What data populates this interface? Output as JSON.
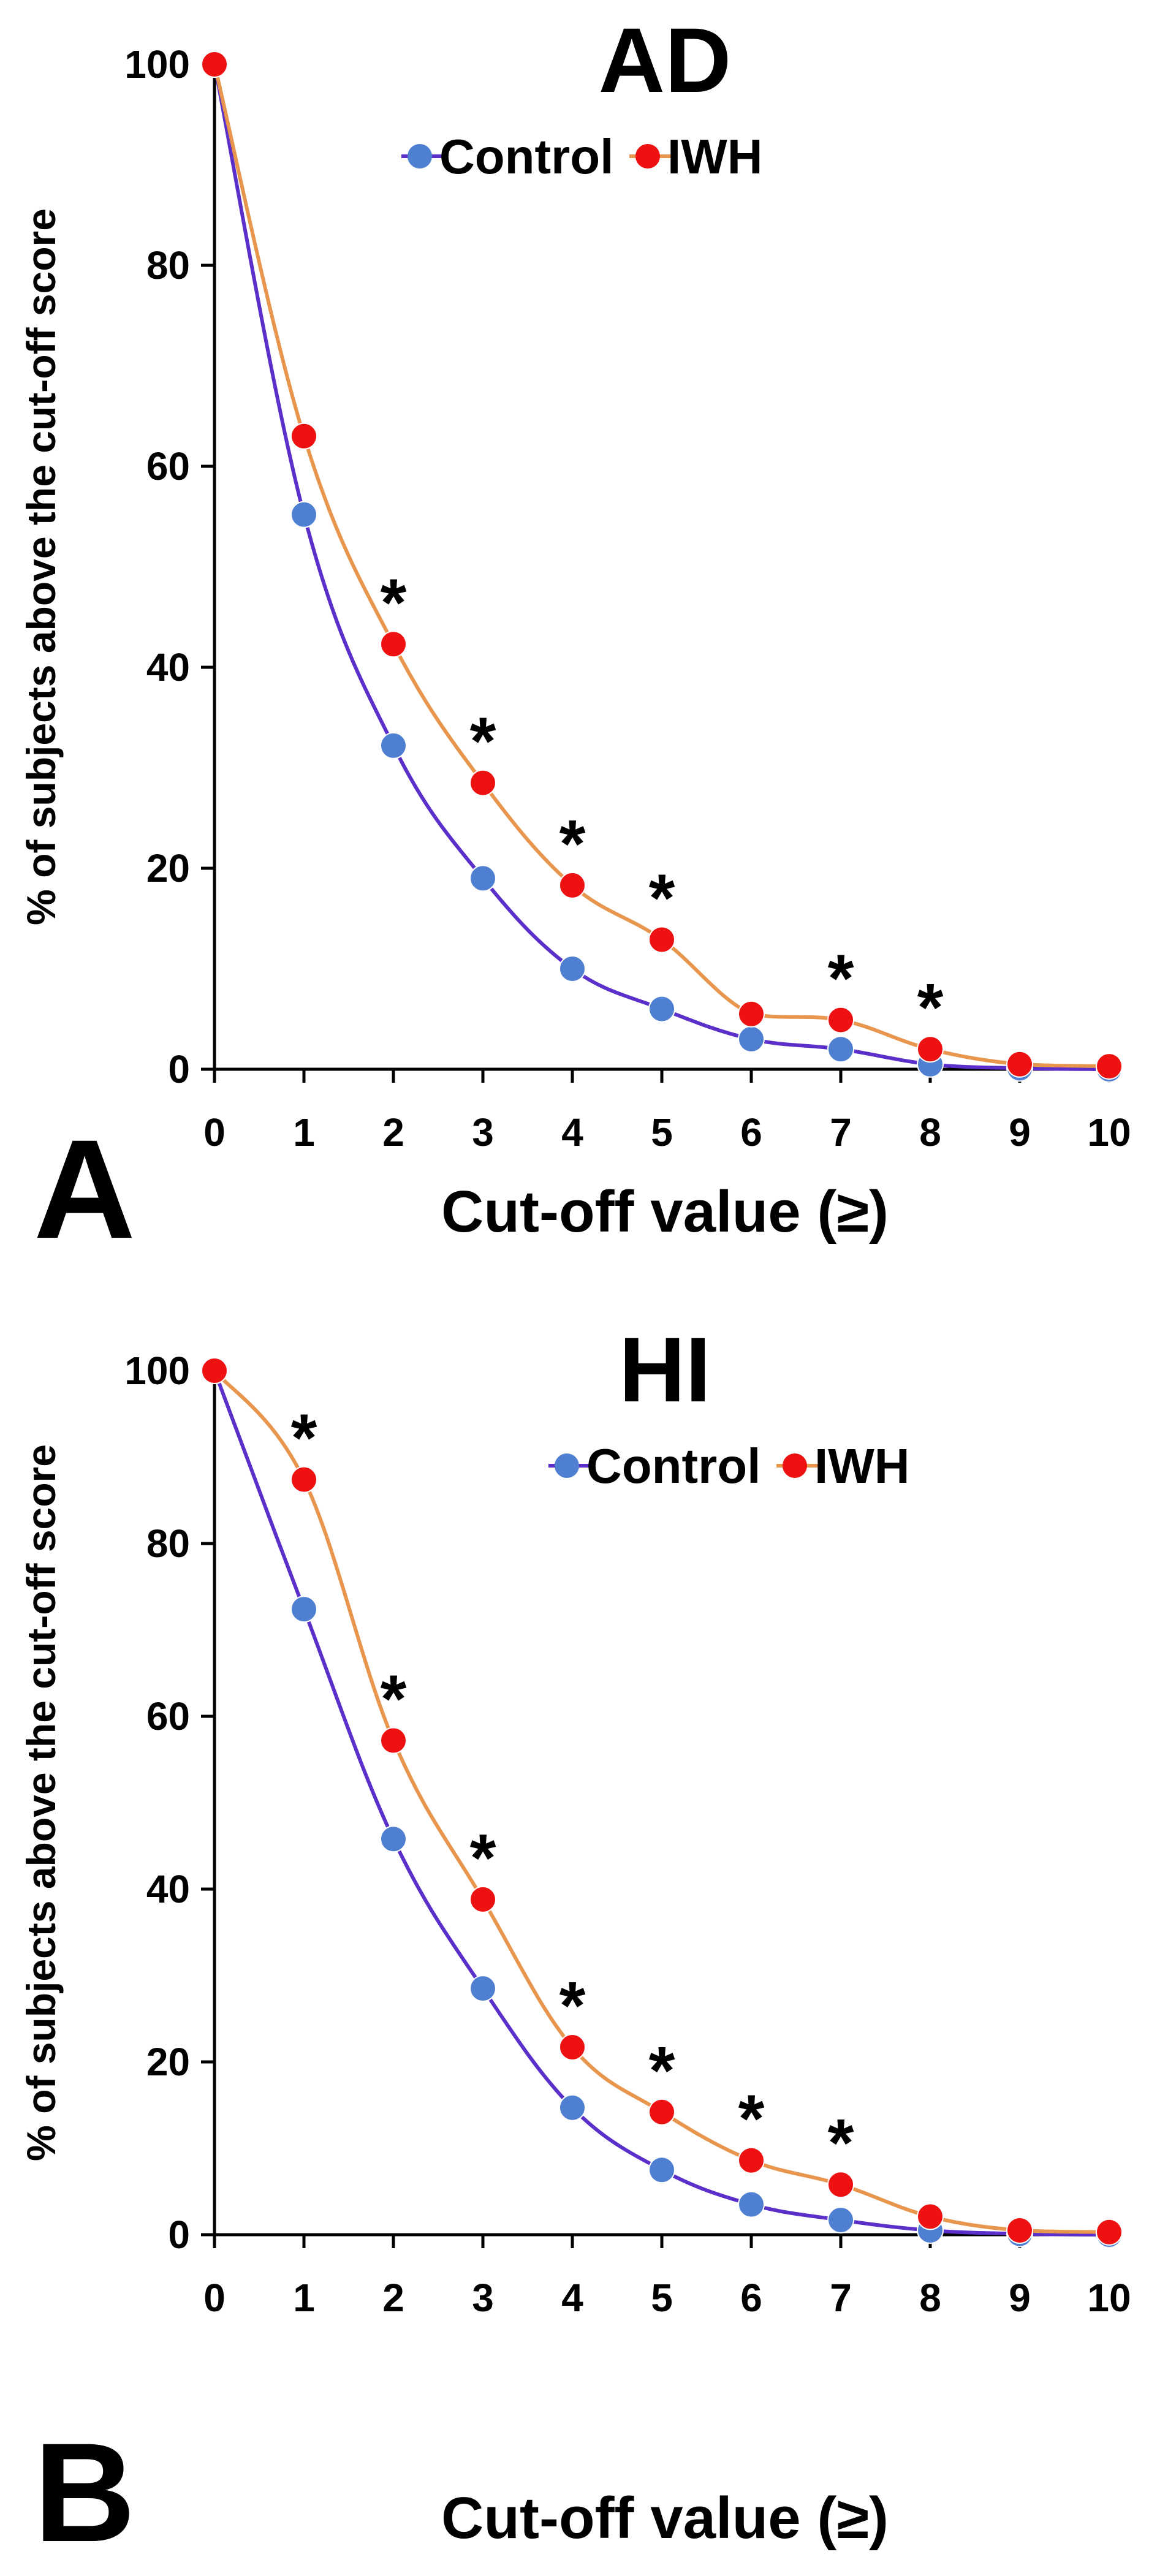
{
  "chart_data": [
    {
      "type": "line",
      "panel_label": "A",
      "title": "AD",
      "xlabel": "Cut-off value (≥)",
      "ylabel": "% of  subjects above the cut-off score",
      "x": [
        0,
        1,
        2,
        3,
        4,
        5,
        6,
        7,
        8,
        9,
        10
      ],
      "xlim": [
        0,
        10
      ],
      "ylim": [
        0,
        100
      ],
      "yticks": [
        0,
        20,
        40,
        60,
        80,
        100
      ],
      "grid": false,
      "legend_position": "top-center",
      "series": [
        {
          "name": "Control",
          "line_color": "#5b2fc9",
          "marker_color": "#4f7fd1",
          "values": [
            100,
            55.2,
            32.2,
            19.0,
            10.0,
            6.0,
            3.0,
            2.0,
            0.5,
            0.1,
            0
          ]
        },
        {
          "name": "IWH",
          "line_color": "#e8964e",
          "marker_color": "#ee1111",
          "values": [
            100,
            63.0,
            42.3,
            28.5,
            18.3,
            12.9,
            5.5,
            4.9,
            2.0,
            0.5,
            0.3
          ]
        }
      ],
      "significance_marker": "*",
      "significant_x": [
        2,
        3,
        4,
        5,
        7,
        8
      ]
    },
    {
      "type": "line",
      "panel_label": "B",
      "title": "HI",
      "xlabel": "Cut-off value (≥)",
      "ylabel": "% of subjects above the cut-off score",
      "x": [
        0,
        1,
        2,
        3,
        4,
        5,
        6,
        7,
        8,
        9,
        10
      ],
      "xlim": [
        0,
        10
      ],
      "ylim": [
        0,
        100
      ],
      "yticks": [
        0,
        20,
        40,
        60,
        80,
        100
      ],
      "grid": false,
      "legend_position": "top-right",
      "series": [
        {
          "name": "Control",
          "line_color": "#5b2fc9",
          "marker_color": "#4f7fd1",
          "values": [
            100,
            72.4,
            45.8,
            28.5,
            14.7,
            7.5,
            3.5,
            1.7,
            0.5,
            0.1,
            0
          ]
        },
        {
          "name": "IWH",
          "line_color": "#e8964e",
          "marker_color": "#ee1111",
          "values": [
            100,
            87.4,
            57.2,
            38.8,
            21.7,
            14.2,
            8.6,
            5.8,
            2.1,
            0.5,
            0.3
          ]
        }
      ],
      "significance_marker": "*",
      "significant_x": [
        1,
        2,
        3,
        4,
        5,
        6,
        7
      ]
    }
  ]
}
